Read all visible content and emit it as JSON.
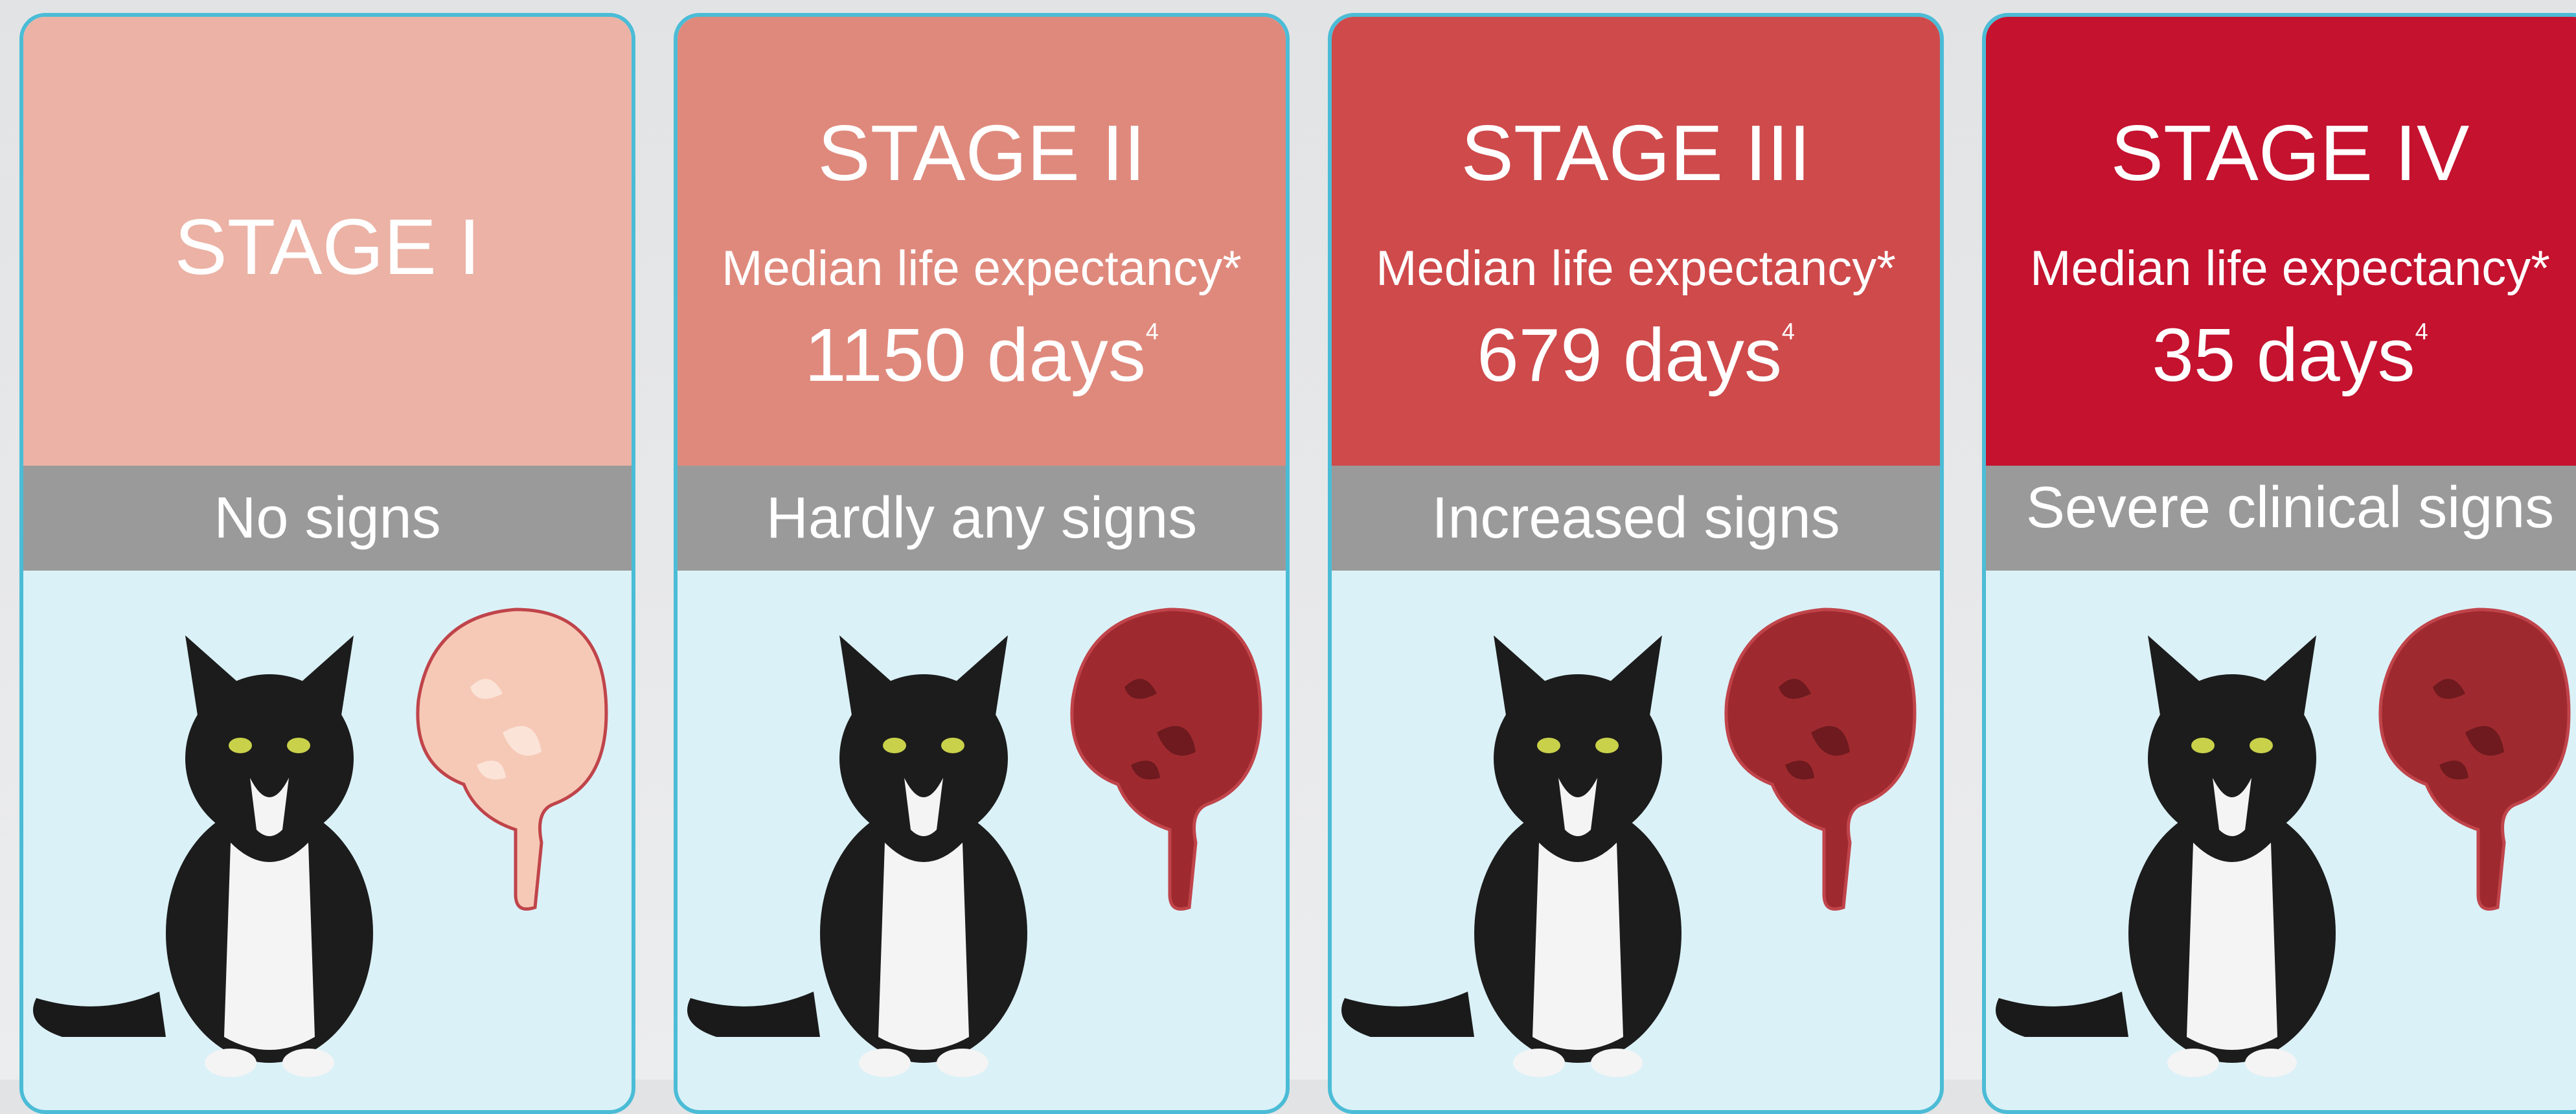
{
  "cards": [
    {
      "title": "STAGE I",
      "signs": "No signs"
    },
    {
      "title": "STAGE II",
      "subtitle": "Median life expectancy*",
      "value": "1150 days",
      "superscript": "4",
      "signs": "Hardly any signs"
    },
    {
      "title": "STAGE III",
      "subtitle": "Median life expectancy*",
      "value": "679 days",
      "superscript": "4",
      "signs": "Increased signs"
    },
    {
      "title": "STAGE IV",
      "subtitle": "Median life expectancy*",
      "value": "35 days",
      "superscript": "4",
      "signs": "Severe clinical signs"
    }
  ]
}
